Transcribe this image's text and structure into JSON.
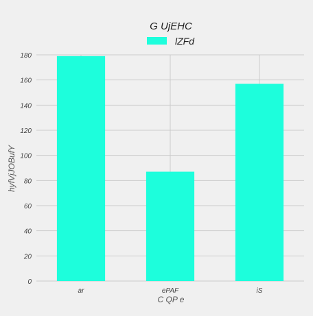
{
  "chart_data": {
    "type": "bar",
    "title": "G UjEHC",
    "xlabel": "C QP e",
    "ylabel": "hyfVjJOBufY",
    "categories": [
      "ar",
      "ePAF",
      "iS"
    ],
    "series": [
      {
        "name": "lZFd",
        "values": [
          179,
          87,
          157
        ]
      }
    ],
    "ylim": [
      0,
      180
    ],
    "yticks": [
      0,
      20,
      40,
      60,
      80,
      100,
      120,
      140,
      160,
      180
    ],
    "grid": true,
    "legend": "top-center",
    "colors": {
      "background": "#f0f0f0",
      "bar": "#1dfedc",
      "grid": "#cbcbcb",
      "text": "#444444",
      "title": "#222222"
    }
  }
}
